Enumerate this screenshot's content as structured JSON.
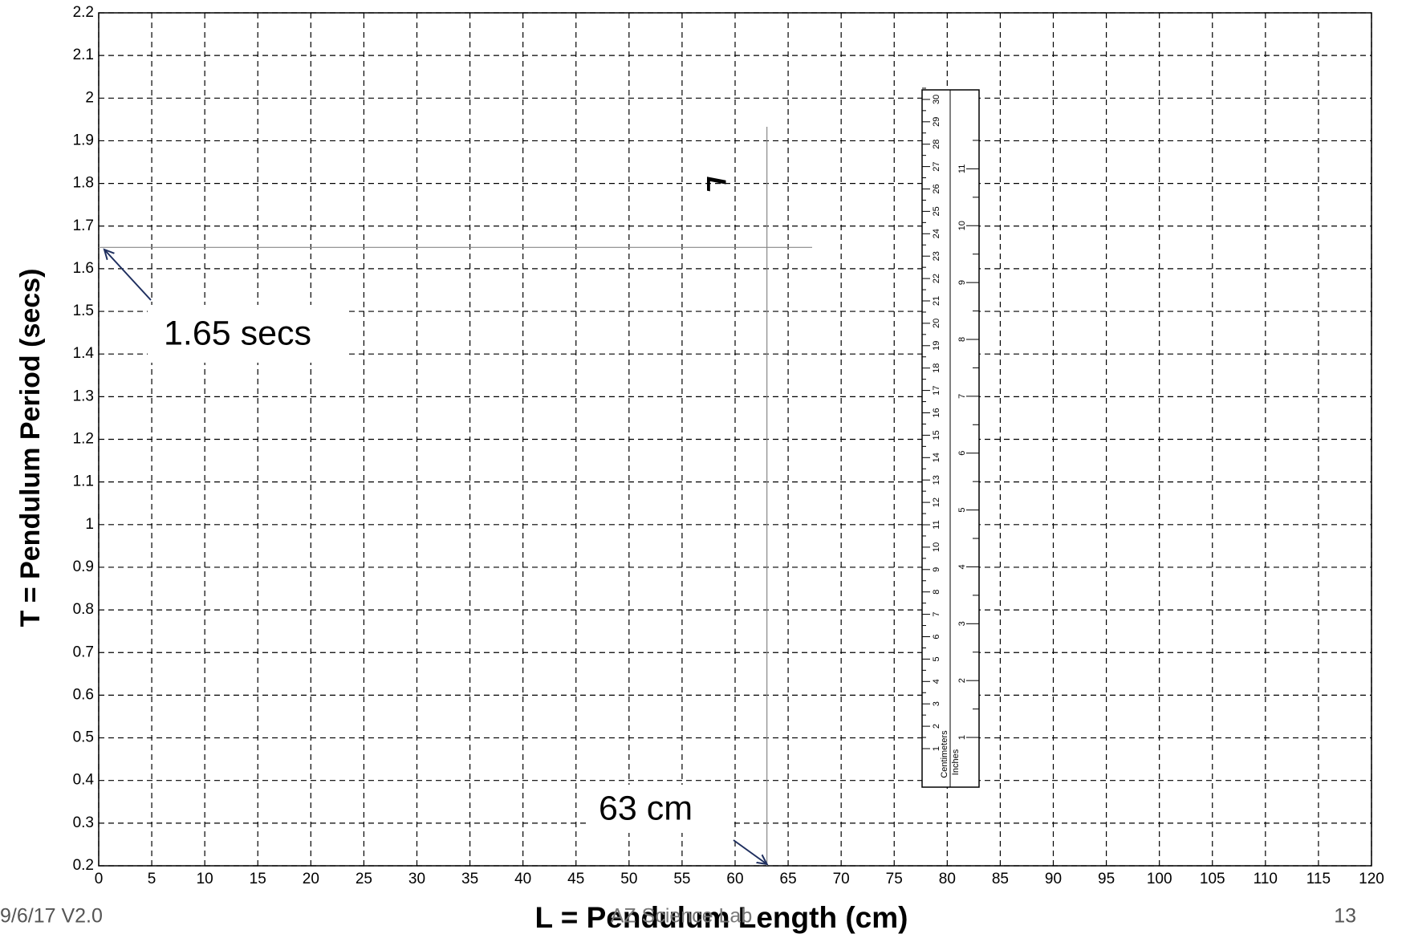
{
  "chart_data": {
    "type": "grid",
    "x_label": "L = Pendulum Length (cm)",
    "y_label": "T = Pendulum Period (secs)",
    "xlim": [
      0,
      120
    ],
    "ylim": [
      0.2,
      2.2
    ],
    "xticks": [
      0,
      5,
      10,
      15,
      20,
      25,
      30,
      35,
      40,
      45,
      50,
      55,
      60,
      65,
      70,
      75,
      80,
      85,
      90,
      95,
      100,
      105,
      110,
      115,
      120
    ],
    "yticks": [
      0.2,
      0.3,
      0.4,
      0.5,
      0.6,
      0.7,
      0.8,
      0.9,
      1,
      1.1,
      1.2,
      1.3,
      1.4,
      1.5,
      1.6,
      1.7,
      1.8,
      1.9,
      2,
      2.1,
      2.2
    ],
    "grid": true,
    "annotations": [
      {
        "text": "1.65 secs",
        "y": 1.65
      },
      {
        "text": "63 cm",
        "x": 63
      }
    ],
    "rotated_label": "L"
  },
  "ruler": {
    "cm_label": "Centimeters",
    "inch_label": "Inches",
    "cm": [
      1,
      2,
      3,
      4,
      5,
      6,
      7,
      8,
      9,
      10,
      11,
      12,
      13,
      14,
      15,
      16,
      17,
      18,
      19,
      20,
      21,
      22,
      23,
      24,
      25,
      26,
      27,
      28,
      29,
      30
    ],
    "inches": [
      1,
      2,
      3,
      4,
      5,
      6,
      7,
      8,
      9,
      10,
      11
    ]
  },
  "footer": {
    "date": "9/6/17 V2.0",
    "center": "AZ Science Lab",
    "page": "13"
  }
}
